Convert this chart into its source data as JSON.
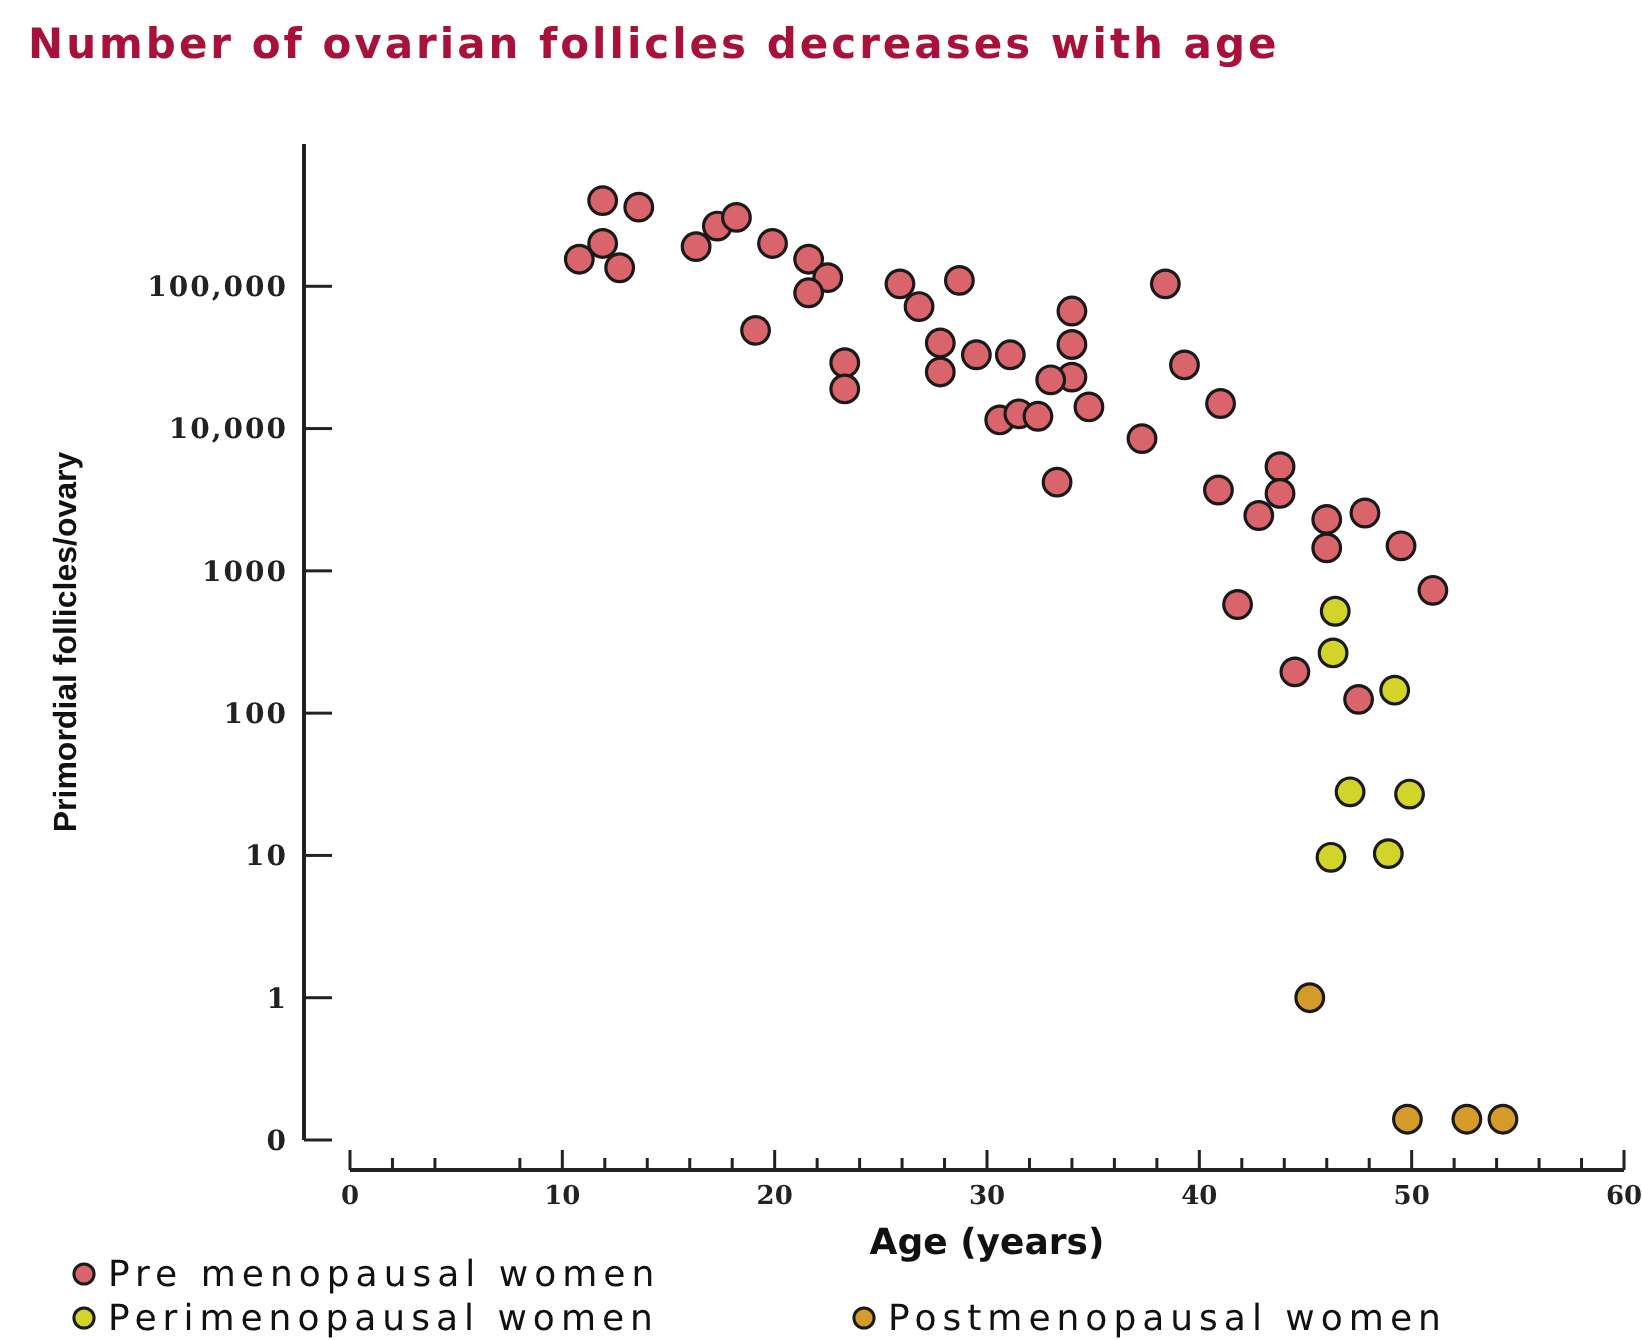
{
  "chart_data": {
    "type": "scatter",
    "title": "Number of ovarian follicles decreases with age",
    "xlabel": "Age (years)",
    "ylabel": "Primordial follicles/ovary",
    "series": [
      {
        "name": "Pre menopausal women",
        "color": "#d9646b",
        "x": [
          11.9,
          13.6,
          11.9,
          10.8,
          12.7,
          16.3,
          17.3,
          18.2,
          19.9,
          21.6,
          22.5,
          21.6,
          19.1,
          23.3,
          23.3,
          25.9,
          28.7,
          26.8,
          27.8,
          27.8,
          29.5,
          31.1,
          34.0,
          34.0,
          34.0,
          33.0,
          30.6,
          31.5,
          32.4,
          34.8,
          33.3,
          37.3,
          38.4,
          39.3,
          41.0,
          43.8,
          43.8,
          40.9,
          42.8,
          46.0,
          47.8,
          46.0,
          49.5,
          51.0,
          41.8,
          44.5,
          47.5
        ],
        "values": [
          400000,
          360000,
          200000,
          155000,
          135000,
          190000,
          265000,
          305000,
          200000,
          155000,
          115000,
          90000,
          49000,
          29000,
          19000,
          104000,
          110000,
          72000,
          40000,
          25000,
          33000,
          33000,
          67000,
          39000,
          23000,
          22000,
          11500,
          12700,
          12200,
          14200,
          4200,
          8500,
          104000,
          28000,
          15000,
          5400,
          3500,
          3700,
          2450,
          2300,
          2550,
          1450,
          1500,
          730,
          580,
          195,
          125
        ]
      },
      {
        "name": "Perimenopausal women",
        "color": "#d2d42a",
        "x": [
          46.4,
          46.3,
          49.2,
          47.1,
          49.9,
          46.2,
          48.9
        ],
        "values": [
          520,
          265,
          145,
          28,
          27,
          9.7,
          10.3
        ]
      },
      {
        "name": "Postmenopausal women",
        "color": "#d49a2a",
        "x": [
          45.2,
          49.8,
          52.6,
          54.3
        ],
        "values": [
          1,
          0.14,
          0.14,
          0.14
        ]
      }
    ],
    "xlim": [
      0,
      60
    ],
    "ylim": [
      0.1,
      1000000
    ],
    "xticks": [
      0,
      {
        "value": 2,
        "label": null
      },
      {
        "value": 4,
        "label": null
      },
      {
        "value": 8,
        "label": null
      },
      10,
      {
        "value": 12,
        "label": null
      },
      {
        "value": 14,
        "label": null
      },
      {
        "value": 16,
        "label": null
      },
      {
        "value": 18,
        "label": null
      },
      20,
      {
        "value": 22,
        "label": null
      },
      {
        "value": 24,
        "label": null
      },
      {
        "value": 26,
        "label": null
      },
      {
        "value": 28,
        "label": null
      },
      30,
      {
        "value": 32,
        "label": null
      },
      {
        "value": 34,
        "label": null
      },
      {
        "value": 36,
        "label": null
      },
      {
        "value": 38,
        "label": null
      },
      40,
      {
        "value": 42,
        "label": null
      },
      {
        "value": 44,
        "label": null
      },
      {
        "value": 46,
        "label": null
      },
      {
        "value": 48,
        "label": null
      },
      50,
      {
        "value": 52,
        "label": null
      },
      {
        "value": 54,
        "label": null
      },
      {
        "value": 56,
        "label": null
      },
      {
        "value": 58,
        "label": null
      },
      60
    ],
    "yticks": [
      {
        "value": 0.1,
        "label": "0"
      },
      1,
      10,
      100,
      1000,
      {
        "value": 10000,
        "label": "10,000"
      },
      {
        "value": 100000,
        "label": "100,000"
      }
    ],
    "log": "y",
    "legend": "bottom left",
    "marker": "circle"
  }
}
